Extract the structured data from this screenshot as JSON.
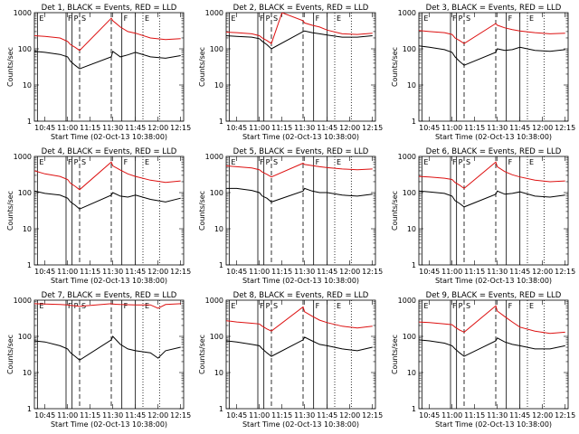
{
  "colors": {
    "events": "#000000",
    "lld": "#dd1111",
    "axes": "#000000",
    "background": "#ffffff"
  },
  "shared": {
    "ylabel": "Counts/sec",
    "xlabel": "Start Time (02-Oct-13 10:38:00)",
    "x_ticks": [
      "10:45",
      "11:00",
      "11:15",
      "11:30",
      "11:45",
      "12:00",
      "12:15"
    ],
    "y_ticks": [
      "1",
      "10",
      "100",
      "1000"
    ],
    "y_scale": "log",
    "ylim": [
      1,
      1000
    ],
    "markers": [
      {
        "label": "E",
        "time": "10:40",
        "style": "solid"
      },
      {
        "label": "F",
        "time": "10:59",
        "style": "solid"
      },
      {
        "label": "P",
        "time": "11:03",
        "style": "solid"
      },
      {
        "label": "S",
        "time": "11:08",
        "style": "dashed"
      },
      {
        "label": "",
        "time": "11:29",
        "style": "dashed"
      },
      {
        "label": "F",
        "time": "11:36",
        "style": "solid"
      },
      {
        "label": "",
        "time": "11:45",
        "style": "solid"
      },
      {
        "label": "E",
        "time": "11:50",
        "style": "dotted"
      },
      {
        "label": "",
        "time": "12:01",
        "style": "dotted"
      }
    ]
  },
  "chart_data": [
    {
      "type": "line",
      "title": "Det 1, BLACK = Events, RED = LLD",
      "y_scale": "log",
      "ylim": [
        1,
        1000
      ],
      "series": [
        {
          "name": "Events",
          "color": "#000000",
          "x": [
            "10:38",
            "10:45",
            "10:55",
            "11:00",
            "11:02",
            "11:05",
            "11:08",
            "11:29",
            "11:30",
            "11:35",
            "11:40",
            "11:45",
            "11:55",
            "12:05",
            "12:15"
          ],
          "y": [
            85,
            80,
            70,
            60,
            45,
            35,
            28,
            60,
            85,
            60,
            68,
            80,
            60,
            55,
            65
          ]
        },
        {
          "name": "LLD",
          "color": "#dd1111",
          "x": [
            "10:38",
            "10:45",
            "10:55",
            "11:00",
            "11:02",
            "11:05",
            "11:08",
            "11:29",
            "11:30",
            "11:35",
            "11:40",
            "11:45",
            "11:55",
            "12:05",
            "12:15"
          ],
          "y": [
            230,
            220,
            200,
            160,
            130,
            110,
            90,
            700,
            600,
            400,
            300,
            270,
            200,
            180,
            190
          ]
        }
      ]
    },
    {
      "type": "line",
      "title": "Det 2, BLACK = Events, RED = LLD",
      "y_scale": "log",
      "ylim": [
        1,
        1000
      ],
      "series": [
        {
          "name": "Events",
          "color": "#000000",
          "x": [
            "10:38",
            "10:45",
            "10:55",
            "11:00",
            "11:02",
            "11:05",
            "11:08",
            "11:29",
            "11:30",
            "11:35",
            "11:40",
            "11:45",
            "11:55",
            "12:05",
            "12:15"
          ],
          "y": [
            230,
            220,
            210,
            190,
            160,
            130,
            100,
            300,
            310,
            280,
            260,
            240,
            210,
            210,
            230
          ]
        },
        {
          "name": "LLD",
          "color": "#dd1111",
          "x": [
            "10:38",
            "10:45",
            "10:55",
            "11:00",
            "11:02",
            "11:05",
            "11:08",
            "11:15",
            "11:29",
            "11:30",
            "11:35",
            "11:40",
            "11:45",
            "11:55",
            "12:05",
            "12:15"
          ],
          "y": [
            290,
            280,
            260,
            230,
            200,
            170,
            140,
            1000,
            600,
            520,
            450,
            400,
            330,
            260,
            250,
            270
          ]
        }
      ]
    },
    {
      "type": "line",
      "title": "Det 3, BLACK = Events, RED = LLD",
      "y_scale": "log",
      "ylim": [
        1,
        1000
      ],
      "series": [
        {
          "name": "Events",
          "color": "#000000",
          "x": [
            "10:38",
            "10:45",
            "10:55",
            "11:00",
            "11:02",
            "11:05",
            "11:08",
            "11:29",
            "11:30",
            "11:35",
            "11:40",
            "11:45",
            "11:55",
            "12:05",
            "12:15"
          ],
          "y": [
            120,
            110,
            95,
            80,
            60,
            45,
            35,
            80,
            100,
            90,
            95,
            110,
            90,
            85,
            95
          ]
        },
        {
          "name": "LLD",
          "color": "#dd1111",
          "x": [
            "10:38",
            "10:45",
            "10:55",
            "11:00",
            "11:02",
            "11:05",
            "11:08",
            "11:29",
            "11:30",
            "11:35",
            "11:40",
            "11:45",
            "11:55",
            "12:05",
            "12:15"
          ],
          "y": [
            320,
            300,
            280,
            250,
            200,
            170,
            140,
            500,
            450,
            380,
            340,
            310,
            280,
            260,
            270
          ]
        }
      ]
    },
    {
      "type": "line",
      "title": "Det 4, BLACK = Events, RED = LLD",
      "y_scale": "log",
      "ylim": [
        1,
        1000
      ],
      "series": [
        {
          "name": "Events",
          "color": "#000000",
          "x": [
            "10:38",
            "10:45",
            "10:55",
            "11:00",
            "11:02",
            "11:05",
            "11:08",
            "11:29",
            "11:30",
            "11:35",
            "11:40",
            "11:45",
            "11:55",
            "12:05",
            "12:15"
          ],
          "y": [
            110,
            95,
            85,
            70,
            55,
            45,
            35,
            85,
            100,
            80,
            75,
            85,
            65,
            55,
            70
          ]
        },
        {
          "name": "LLD",
          "color": "#dd1111",
          "x": [
            "10:38",
            "10:45",
            "10:55",
            "11:00",
            "11:02",
            "11:05",
            "11:08",
            "11:29",
            "11:30",
            "11:35",
            "11:40",
            "11:45",
            "11:55",
            "12:05",
            "12:15"
          ],
          "y": [
            400,
            330,
            280,
            230,
            180,
            150,
            120,
            700,
            550,
            420,
            330,
            280,
            220,
            190,
            210
          ]
        }
      ]
    },
    {
      "type": "line",
      "title": "Det 5, BLACK = Events, RED = LLD",
      "y_scale": "log",
      "ylim": [
        1,
        1000
      ],
      "series": [
        {
          "name": "Events",
          "color": "#000000",
          "x": [
            "10:38",
            "10:45",
            "10:55",
            "11:00",
            "11:02",
            "11:05",
            "11:08",
            "11:29",
            "11:30",
            "11:35",
            "11:40",
            "11:45",
            "11:55",
            "12:05",
            "12:15"
          ],
          "y": [
            130,
            130,
            115,
            100,
            80,
            70,
            55,
            110,
            130,
            110,
            100,
            100,
            85,
            80,
            90
          ]
        },
        {
          "name": "LLD",
          "color": "#dd1111",
          "x": [
            "10:38",
            "10:45",
            "10:55",
            "11:00",
            "11:02",
            "11:05",
            "11:08",
            "11:29",
            "11:30",
            "11:35",
            "11:40",
            "11:45",
            "11:55",
            "12:05",
            "12:15"
          ],
          "y": [
            550,
            520,
            480,
            430,
            370,
            320,
            270,
            650,
            600,
            560,
            520,
            490,
            450,
            430,
            450
          ]
        }
      ]
    },
    {
      "type": "line",
      "title": "Det 6, BLACK = Events, RED = LLD",
      "y_scale": "log",
      "ylim": [
        1,
        1000
      ],
      "series": [
        {
          "name": "Events",
          "color": "#000000",
          "x": [
            "10:38",
            "10:45",
            "10:55",
            "11:00",
            "11:02",
            "11:05",
            "11:08",
            "11:29",
            "11:30",
            "11:35",
            "11:40",
            "11:45",
            "11:55",
            "12:05",
            "12:15"
          ],
          "y": [
            110,
            105,
            95,
            80,
            60,
            50,
            40,
            90,
            110,
            90,
            95,
            105,
            80,
            75,
            85
          ]
        },
        {
          "name": "LLD",
          "color": "#dd1111",
          "x": [
            "10:38",
            "10:45",
            "10:55",
            "11:00",
            "11:02",
            "11:05",
            "11:08",
            "11:29",
            "11:30",
            "11:35",
            "11:40",
            "11:45",
            "11:55",
            "12:05",
            "12:15"
          ],
          "y": [
            280,
            270,
            250,
            230,
            190,
            160,
            130,
            700,
            520,
            380,
            310,
            270,
            220,
            200,
            210
          ]
        }
      ]
    },
    {
      "type": "line",
      "title": "Det 7, BLACK = Events, RED = LLD",
      "y_scale": "log",
      "ylim": [
        1,
        1000
      ],
      "series": [
        {
          "name": "Events",
          "color": "#000000",
          "x": [
            "10:38",
            "10:45",
            "10:55",
            "11:00",
            "11:02",
            "11:05",
            "11:08",
            "11:29",
            "11:30",
            "11:35",
            "11:40",
            "11:45",
            "11:55",
            "12:00",
            "12:05",
            "12:15"
          ],
          "y": [
            75,
            70,
            55,
            45,
            35,
            28,
            22,
            80,
            100,
            60,
            45,
            40,
            35,
            25,
            40,
            50
          ]
        },
        {
          "name": "LLD",
          "color": "#dd1111",
          "x": [
            "10:38",
            "10:45",
            "10:55",
            "11:00",
            "11:02",
            "11:05",
            "11:08",
            "11:29",
            "11:30",
            "11:35",
            "11:40",
            "11:45",
            "11:55",
            "12:00",
            "12:05",
            "12:15"
          ],
          "y": [
            800,
            780,
            760,
            740,
            720,
            700,
            680,
            800,
            780,
            760,
            750,
            740,
            740,
            600,
            760,
            800
          ]
        }
      ]
    },
    {
      "type": "line",
      "title": "Det 8, BLACK = Events, RED = LLD",
      "y_scale": "log",
      "ylim": [
        1,
        1000
      ],
      "series": [
        {
          "name": "Events",
          "color": "#000000",
          "x": [
            "10:38",
            "10:45",
            "10:55",
            "11:00",
            "11:02",
            "11:05",
            "11:08",
            "11:29",
            "11:30",
            "11:35",
            "11:40",
            "11:45",
            "11:55",
            "12:05",
            "12:15"
          ],
          "y": [
            75,
            70,
            60,
            55,
            45,
            35,
            28,
            80,
            95,
            75,
            60,
            55,
            45,
            40,
            50
          ]
        },
        {
          "name": "LLD",
          "color": "#dd1111",
          "x": [
            "10:38",
            "10:45",
            "10:55",
            "11:00",
            "11:02",
            "11:05",
            "11:08",
            "11:29",
            "11:30",
            "11:35",
            "11:40",
            "11:45",
            "11:55",
            "12:05",
            "12:15"
          ],
          "y": [
            270,
            250,
            230,
            220,
            190,
            160,
            140,
            650,
            480,
            360,
            280,
            240,
            190,
            170,
            190
          ]
        }
      ]
    },
    {
      "type": "line",
      "title": "Det 9, BLACK = Events, RED = LLD",
      "y_scale": "log",
      "ylim": [
        1,
        1000
      ],
      "series": [
        {
          "name": "Events",
          "color": "#000000",
          "x": [
            "10:38",
            "10:45",
            "10:55",
            "11:00",
            "11:02",
            "11:05",
            "11:08",
            "11:29",
            "11:30",
            "11:35",
            "11:40",
            "11:45",
            "11:55",
            "12:05",
            "12:15"
          ],
          "y": [
            80,
            75,
            65,
            55,
            45,
            35,
            28,
            75,
            90,
            70,
            60,
            55,
            45,
            45,
            55
          ]
        },
        {
          "name": "LLD",
          "color": "#dd1111",
          "x": [
            "10:38",
            "10:45",
            "10:55",
            "11:00",
            "11:02",
            "11:05",
            "11:08",
            "11:29",
            "11:30",
            "11:35",
            "11:40",
            "11:45",
            "11:55",
            "12:05",
            "12:15"
          ],
          "y": [
            250,
            240,
            220,
            210,
            180,
            150,
            130,
            700,
            500,
            350,
            250,
            180,
            140,
            120,
            130
          ]
        }
      ]
    }
  ]
}
